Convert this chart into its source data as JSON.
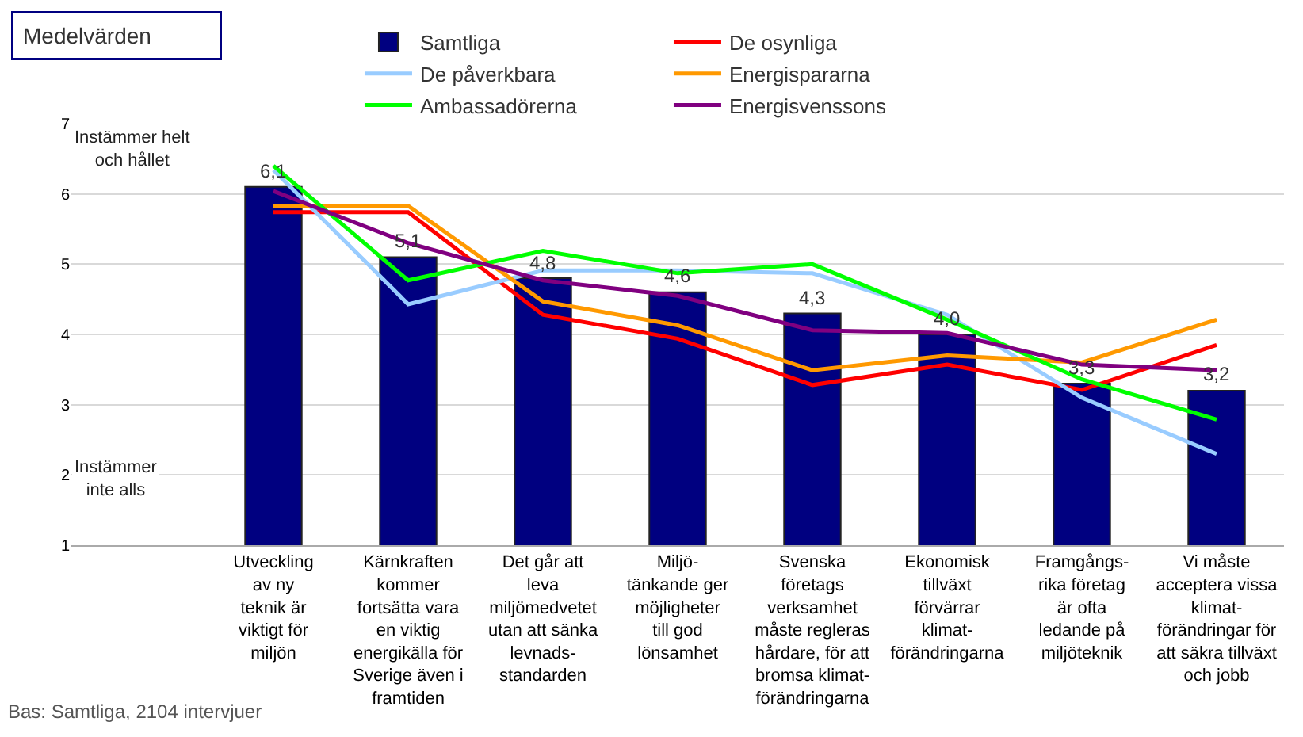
{
  "chart_data": {
    "type": "bar",
    "title": "Medelvärden",
    "categories": [
      "Utveckling\nav ny\nteknik är\nviktigt för\nmiljön",
      "Kärnkraften\nkommer\nfortsätta vara\nen viktig\nenergikälla för\nSverige även i\nframtiden",
      "Det går att\nleva\nmiljömedvetet\nutan att sänka\nlevnads-\nstandarden",
      "Miljö-\ntänkande ger\nmöjligheter\ntill god\nlönsamhet",
      "Svenska\nföretags\nverksamhet\nmåste regleras\nhårdare, för att\nbromsa klimat-\nförändringarna",
      "Ekonomisk\ntillväxt\nförvärrar\nklimat-\nförändringarna",
      "Framgångs-\nrika företag\när ofta\nledande på\nmiljöteknik",
      "Vi måste\nacceptera vissa\nklimat-\nförändringar för\natt säkra tillväxt\noch jobb"
    ],
    "series": [
      {
        "name": "Samtliga",
        "color": "#000080",
        "values": [
          6.1,
          5.1,
          4.8,
          4.6,
          4.3,
          4.0,
          3.3,
          3.2
        ],
        "value_labels": [
          "6,1",
          "5,1",
          "4,8",
          "4,6",
          "4,3",
          "4,0",
          "3,3",
          "3,2"
        ]
      },
      {
        "name": "De osynliga",
        "type": "line",
        "color": "#ff0000",
        "values": [
          5.74,
          5.74,
          4.28,
          3.94,
          3.28,
          3.57,
          3.21,
          3.85
        ]
      },
      {
        "name": "De påverkbara",
        "type": "line",
        "color": "#99ccff",
        "values": [
          6.34,
          4.43,
          4.91,
          4.91,
          4.87,
          4.28,
          3.1,
          2.3
        ]
      },
      {
        "name": "Energispararna",
        "type": "line",
        "color": "#ff9900",
        "values": [
          5.83,
          5.83,
          4.47,
          4.13,
          3.49,
          3.7,
          3.6,
          4.21
        ]
      },
      {
        "name": "Ambassadörerna",
        "type": "line",
        "color": "#00ff00",
        "values": [
          6.4,
          4.77,
          5.19,
          4.87,
          5.0,
          4.21,
          3.36,
          2.79
        ]
      },
      {
        "name": "Energisvenssons",
        "type": "line",
        "color": "#800080",
        "values": [
          6.04,
          5.3,
          4.77,
          4.55,
          4.06,
          4.02,
          3.57,
          3.49
        ]
      }
    ],
    "ylim": [
      1,
      7
    ],
    "yticks": [
      1,
      2,
      3,
      4,
      5,
      6,
      7
    ],
    "grid": "y",
    "legend": "top",
    "marker": "none",
    "line_style": "solid",
    "annotations": [
      "Instämmer helt\noch hållet",
      "Instämmer\ninte alls",
      "Bas: Samtliga, 2104 intervjuer"
    ]
  }
}
